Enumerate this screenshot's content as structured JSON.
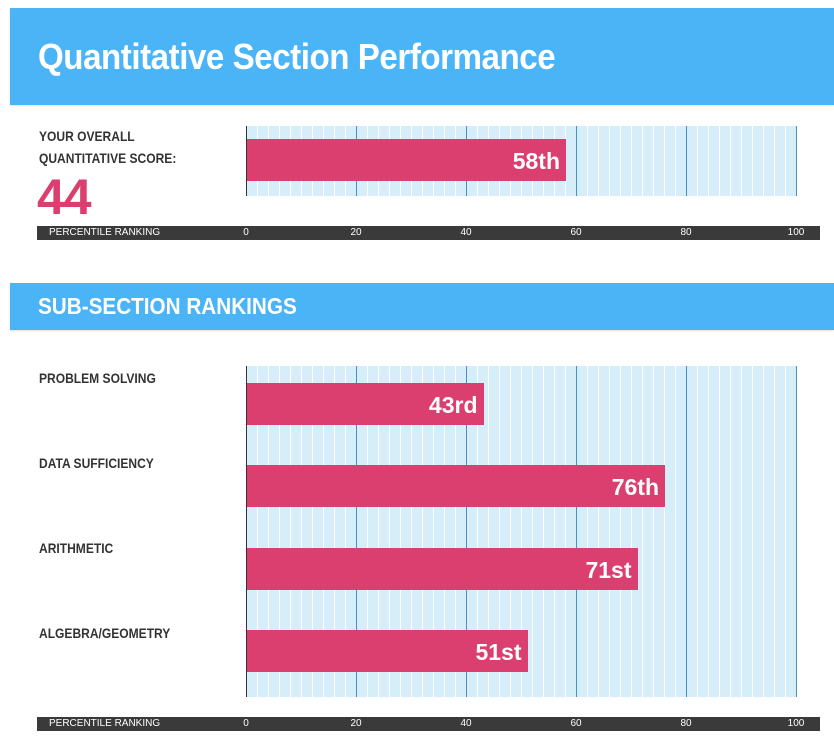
{
  "header": {
    "title": "Quantitative Section Performance"
  },
  "overall": {
    "label_line1": "YOUR OVERALL",
    "label_line2": "QUANTITATIVE SCORE:",
    "score": "44"
  },
  "subsection_header": {
    "title": "SUB-SECTION RANKINGS"
  },
  "axis": {
    "caption": "PERCENTILE RANKING"
  },
  "colors": {
    "banner": "#4ab4f7",
    "bar": "#db3f6f",
    "plot_bg": "#d5eefa",
    "major_grid": "#4a90c8"
  },
  "chart_data": [
    {
      "type": "bar",
      "orientation": "horizontal",
      "categories": [
        ""
      ],
      "values": [
        58
      ],
      "data_labels": [
        "58th"
      ],
      "xlabel": "PERCENTILE RANKING",
      "xlim": [
        0,
        100
      ],
      "xticks": [
        0,
        20,
        40,
        60,
        80,
        100
      ],
      "grid": true
    },
    {
      "type": "bar",
      "orientation": "horizontal",
      "categories": [
        "PROBLEM SOLVING",
        "DATA SUFFICIENCY",
        "ARITHMETIC",
        "ALGEBRA/GEOMETRY"
      ],
      "values": [
        43,
        76,
        71,
        51
      ],
      "data_labels": [
        "43rd",
        "76th",
        "71st",
        "51st"
      ],
      "xlabel": "PERCENTILE RANKING",
      "xlim": [
        0,
        100
      ],
      "xticks": [
        0,
        20,
        40,
        60,
        80,
        100
      ],
      "grid": true
    }
  ]
}
